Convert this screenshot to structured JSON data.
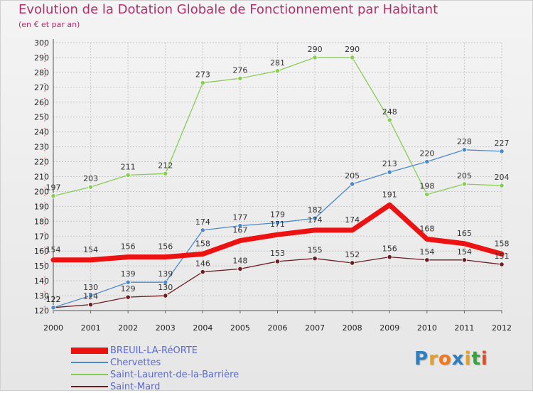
{
  "title": "Evolution de la Dotation Globale de Fonctionnement par Habitant",
  "subtitle": "(en € et par an)",
  "logo": {
    "letters": [
      "P",
      "r",
      "o",
      "x",
      "i",
      "t",
      "i"
    ],
    "colors": [
      "#2c7fc0",
      "#e8a020",
      "#f07818",
      "#2c7fc0",
      "#e8a020",
      "#3aa040",
      "#e84a20"
    ]
  },
  "chart_data": {
    "type": "line",
    "x": [
      "2000",
      "2001",
      "2002",
      "2003",
      "2004",
      "2005",
      "2006",
      "2007",
      "2008",
      "2009",
      "2010",
      "2011",
      "2012"
    ],
    "ylim": [
      120,
      300
    ],
    "yticks": [
      "120",
      "130",
      "140",
      "150",
      "160",
      "170",
      "180",
      "190",
      "200",
      "210",
      "220",
      "230",
      "240",
      "250",
      "260",
      "270",
      "280",
      "290",
      "300"
    ],
    "grid": true,
    "legend_position": "bottom-left",
    "series": [
      {
        "name": "BREUIL-LA-RéORTE",
        "color": "#ee1111",
        "values": [
          154,
          154,
          156,
          156,
          158,
          167,
          171,
          174,
          174,
          191,
          168,
          165,
          158
        ],
        "labels": [
          "154",
          "154",
          "156",
          "156",
          "158",
          "167",
          "171",
          "174",
          "174",
          "191",
          "168",
          "165",
          "158"
        ]
      },
      {
        "name": "Chervettes",
        "color": "#4e8ac8",
        "values": [
          122,
          130,
          139,
          139,
          174,
          177,
          179,
          182,
          205,
          213,
          220,
          228,
          227
        ],
        "labels": [
          "122",
          "130",
          "139",
          "139",
          "174",
          "177",
          "179",
          "182",
          "205",
          "213",
          "220",
          "228",
          "227"
        ]
      },
      {
        "name": "Saint-Laurent-de-la-Barrière",
        "color": "#88cc55",
        "values": [
          197,
          203,
          211,
          212,
          273,
          276,
          281,
          290,
          290,
          248,
          198,
          205,
          204
        ],
        "labels": [
          "197",
          "203",
          "211",
          "212",
          "273",
          "276",
          "281",
          "290",
          "290",
          "248",
          "198",
          "205",
          "204"
        ]
      },
      {
        "name": "Saint-Mard",
        "color": "#6b1e22",
        "values": [
          122,
          124,
          129,
          130,
          146,
          148,
          153,
          155,
          152,
          156,
          154,
          154,
          151
        ],
        "labels": [
          "122",
          "124",
          "129",
          "130",
          "146",
          "148",
          "153",
          "155",
          "152",
          "156",
          "154",
          "154",
          "151"
        ]
      }
    ]
  }
}
